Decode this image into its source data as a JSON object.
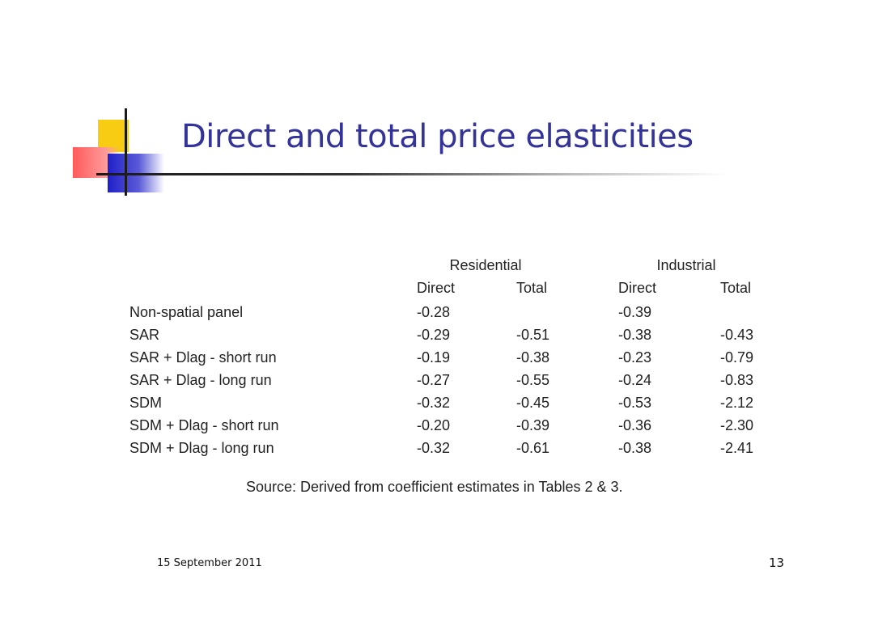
{
  "slide": {
    "title": "Direct and total price elasticities",
    "table": {
      "groups": [
        "Residential",
        "Industrial"
      ],
      "columns": [
        "Direct",
        "Total",
        "Direct",
        "Total"
      ],
      "rows": [
        {
          "label": "Non-spatial panel",
          "values": [
            "-0.28",
            "",
            "-0.39",
            ""
          ]
        },
        {
          "label": "SAR",
          "values": [
            "-0.29",
            "-0.51",
            "-0.38",
            "-0.43"
          ]
        },
        {
          "label": "SAR + Dlag - short run",
          "values": [
            "-0.19",
            "-0.38",
            "-0.23",
            "-0.79"
          ]
        },
        {
          "label": "SAR + Dlag - long run",
          "values": [
            "-0.27",
            "-0.55",
            "-0.24",
            "-0.83"
          ]
        },
        {
          "label": "SDM",
          "values": [
            "-0.32",
            "-0.45",
            "-0.53",
            "-2.12"
          ]
        },
        {
          "label": "SDM + Dlag - short run",
          "values": [
            "-0.20",
            "-0.39",
            "-0.36",
            "-2.30"
          ]
        },
        {
          "label": "SDM + Dlag - long run",
          "values": [
            "-0.32",
            "-0.61",
            "-0.38",
            "-2.41"
          ]
        }
      ]
    },
    "source": "Source: Derived from coefficient estimates in Tables 2 & 3.",
    "footer": {
      "date": "15 September 2011",
      "page_number": "13"
    }
  }
}
